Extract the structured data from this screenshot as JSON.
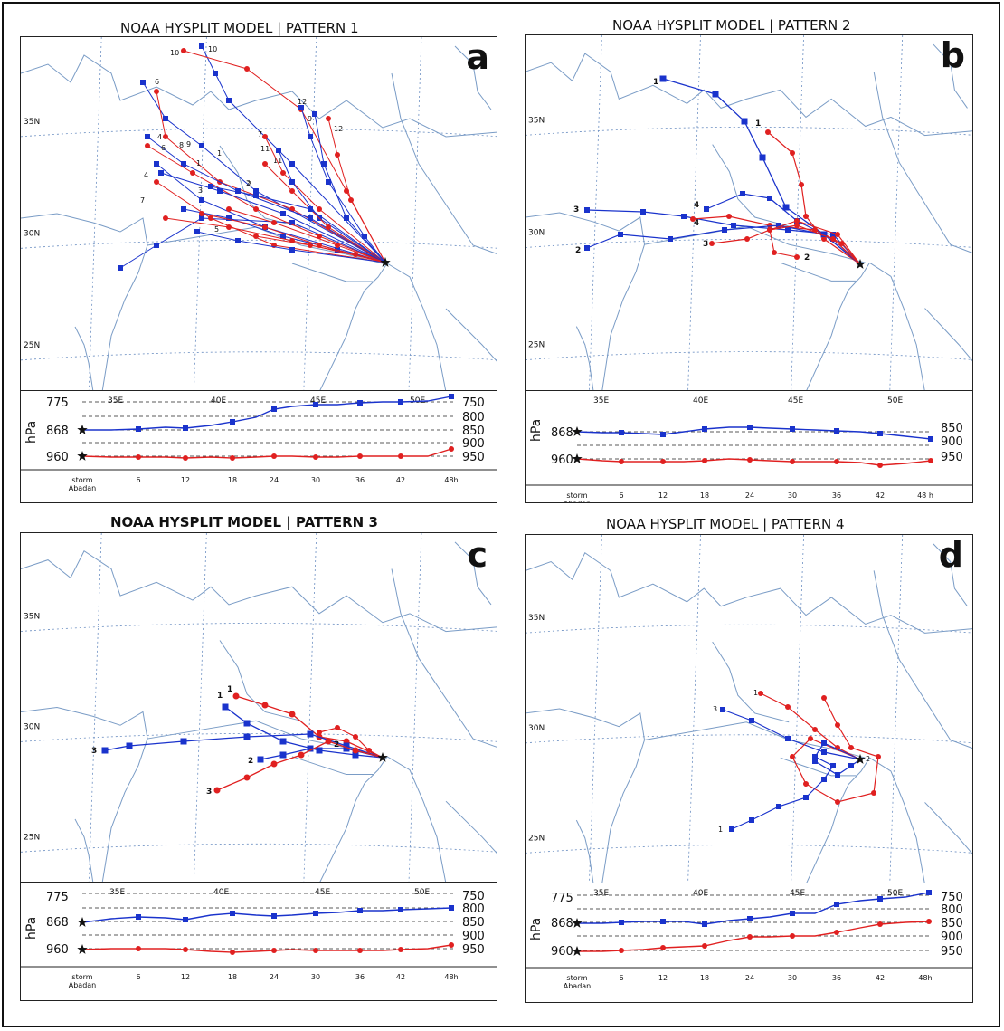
{
  "panels": [
    {
      "id": "a",
      "title": "NOAA HYSPLIT MODEL  | PATTERN 1",
      "letter": "a",
      "lat_labels": [
        "35N",
        "30N",
        "25N"
      ],
      "lon_labels": [
        "35E",
        "40E",
        "45E",
        "50E"
      ],
      "pressure_left": [
        "775",
        "868",
        "960"
      ],
      "pressure_right": [
        "750",
        "800",
        "850",
        "900",
        "950"
      ],
      "hours": [
        "storm\nAbadan",
        "6",
        "12",
        "18",
        "24",
        "30",
        "36",
        "42",
        "48h"
      ],
      "unit": "hPa"
    },
    {
      "id": "b",
      "title": "NOAA HYSPLIT MODEL | PATTERN 2",
      "letter": "b",
      "lat_labels": [
        "35N",
        "30N",
        "25N"
      ],
      "lon_labels": [
        "35E",
        "40E",
        "45E",
        "50E"
      ],
      "pressure_left": [
        "868",
        "960"
      ],
      "pressure_right": [
        "850",
        "900",
        "950"
      ],
      "hours": [
        "storm\nAbadan",
        "6",
        "12",
        "18",
        "24",
        "30",
        "36",
        "42",
        "48 h"
      ],
      "unit": "hPa"
    },
    {
      "id": "c",
      "title": "NOAA HYSPLIT MODEL | PATTERN 3",
      "letter": "c",
      "lat_labels": [
        "35N",
        "30N",
        "25N"
      ],
      "lon_labels": [
        "35E",
        "40E",
        "45E",
        "50E"
      ],
      "pressure_left": [
        "775",
        "868",
        "960"
      ],
      "pressure_right": [
        "750",
        "800",
        "850",
        "900",
        "950"
      ],
      "hours": [
        "storm\nAbadan",
        "6",
        "12",
        "18",
        "24",
        "30",
        "36",
        "42",
        "48h"
      ],
      "unit": "hPa"
    },
    {
      "id": "d",
      "title": "NOAA HYSPLIT MODEL | PATTERN 4",
      "letter": "d",
      "lat_labels": [
        "35N",
        "30N",
        "25N"
      ],
      "lon_labels": [
        "35E",
        "40E",
        "45E",
        "50E"
      ],
      "pressure_left": [
        "775",
        "868",
        "960"
      ],
      "pressure_right": [
        "750",
        "800",
        "850",
        "900",
        "950"
      ],
      "hours": [
        "storm\nAbadan",
        "6",
        "12",
        "18",
        "24",
        "30",
        "36",
        "42",
        "48h"
      ],
      "unit": "hPa"
    }
  ],
  "trajectory_labels": {
    "a": [
      "10",
      "10",
      "6",
      "4",
      "6",
      "4",
      "7",
      "1",
      "8",
      "9",
      "3",
      "5",
      "2",
      "12",
      "9",
      "12",
      "7",
      "11",
      "11",
      "1",
      "2"
    ],
    "b": [
      "1",
      "1",
      "3",
      "4",
      "4",
      "2",
      "3",
      "2"
    ],
    "c": [
      "1",
      "1",
      "3",
      "2",
      "2",
      "3"
    ],
    "d": [
      "1",
      "3",
      "2",
      "1"
    ]
  },
  "colors": {
    "blue_traj": "#1a33cc",
    "red_traj": "#e02020",
    "coast": "#7a9cc6",
    "grid": "#6c8fc2"
  }
}
